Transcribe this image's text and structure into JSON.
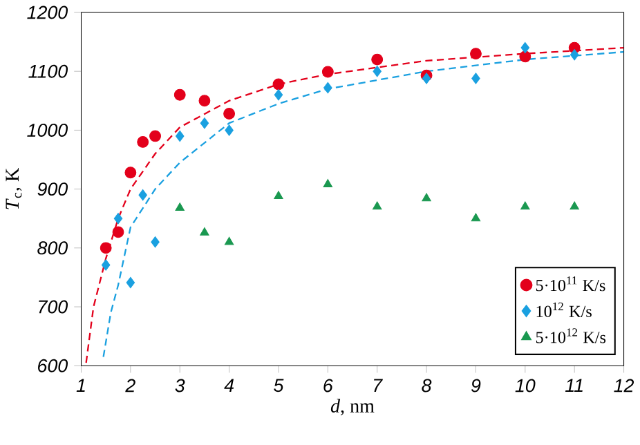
{
  "chart_data": {
    "type": "scatter",
    "xlabel": "*d*, nm",
    "ylabel": "*T*$_{c}$, K",
    "xlim": [
      1,
      12
    ],
    "xticks": [
      1,
      2,
      3,
      4,
      5,
      6,
      7,
      8,
      9,
      10,
      11,
      12
    ],
    "ylim": [
      600,
      1200
    ],
    "yticks": [
      600,
      700,
      800,
      900,
      1000,
      1100,
      1200
    ],
    "grid": false,
    "legend": "bottom right",
    "series": [
      {
        "name": "5·10$^{11}$ K/s",
        "color": "#e3001b",
        "marker": "circle",
        "x": [
          1.5,
          1.75,
          2,
          2.25,
          2.5,
          3,
          3.5,
          4,
          5,
          6,
          7,
          8,
          9,
          10,
          11
        ],
        "values": [
          800,
          827,
          928,
          980,
          990,
          1060,
          1050,
          1028,
          1078,
          1099,
          1120,
          1093,
          1130,
          1125,
          1140
        ]
      },
      {
        "name": "10$^{12}$ K/s",
        "color": "#1aa0e0",
        "marker": "diamond",
        "x": [
          1.5,
          1.75,
          2,
          2.25,
          2.5,
          3,
          3.5,
          4,
          5,
          6,
          7,
          8,
          9,
          10,
          11
        ],
        "values": [
          771,
          850,
          741,
          890,
          810,
          990,
          1012,
          1000,
          1060,
          1072,
          1100,
          1088,
          1088,
          1140,
          1128
        ]
      },
      {
        "name": "5·10$^{12}$ K/s",
        "color": "#1a9850",
        "marker": "triangle",
        "x": [
          3,
          3.5,
          4,
          5,
          6,
          7,
          8,
          9,
          10,
          11
        ],
        "values": [
          868,
          826,
          810,
          888,
          908,
          870,
          884,
          850,
          870,
          870
        ]
      },
      {
        "type": "line",
        "color": "#e3001b",
        "line_style": "dashed",
        "marker": "none",
        "x": [
          1.1,
          1.25,
          1.5,
          1.75,
          2,
          2.5,
          3,
          4,
          5,
          6,
          8,
          10,
          12
        ],
        "values": [
          605,
          700,
          782,
          850,
          900,
          960,
          1005,
          1050,
          1078,
          1095,
          1118,
          1130,
          1140
        ]
      },
      {
        "type": "line",
        "color": "#1aa0e0",
        "line_style": "dashed",
        "marker": "none",
        "x": [
          1.45,
          1.6,
          1.75,
          2,
          2.5,
          3,
          4,
          5,
          6,
          8,
          10,
          12
        ],
        "values": [
          615,
          690,
          737,
          835,
          900,
          945,
          1012,
          1045,
          1070,
          1100,
          1120,
          1133
        ]
      }
    ]
  }
}
